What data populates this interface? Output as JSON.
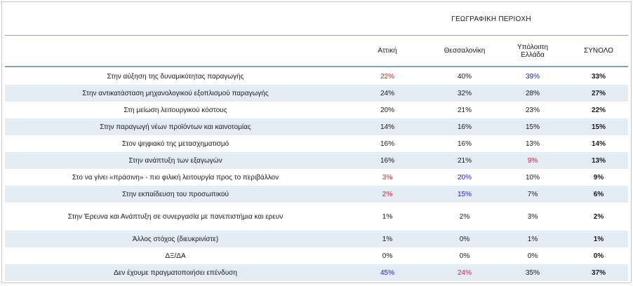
{
  "table": {
    "group_title": "ΓΕΩΓΡΑΦΙΚΗ ΠΕΡΙΟΧΗ",
    "columns": [
      "Αττική",
      "Θεσσαλονίκη",
      "Υπόλοιπη Ελλάδα",
      "ΣΥΝΟΛΟ"
    ],
    "colors": {
      "highlight_red": "#e02020",
      "highlight_blue": "#2020e0",
      "row_shade": "#e4ebf5"
    },
    "rows": [
      {
        "label": "Στην αύξηση της δυναμικότητας παραγωγής",
        "values": [
          "22%",
          "40%",
          "39%",
          "33%"
        ],
        "colors": [
          "red",
          "",
          "blue",
          ""
        ]
      },
      {
        "label": "Στην αντικατάσταση μηχανολογικού εξοπλισμού παραγωγής",
        "values": [
          "24%",
          "32%",
          "28%",
          "27%"
        ],
        "colors": [
          "",
          "",
          "",
          ""
        ]
      },
      {
        "label": "Στη μείωση λειτουργικού κόστους",
        "values": [
          "20%",
          "21%",
          "23%",
          "22%"
        ],
        "colors": [
          "",
          "",
          "",
          ""
        ]
      },
      {
        "label": "Στην παραγωγή νέων προϊόντων και καινοτομίας",
        "values": [
          "14%",
          "16%",
          "15%",
          "15%"
        ],
        "colors": [
          "",
          "",
          "",
          ""
        ]
      },
      {
        "label": "Στον ψηφιακό της μετασχηματισμό",
        "values": [
          "16%",
          "16%",
          "13%",
          "14%"
        ],
        "colors": [
          "",
          "",
          "",
          ""
        ]
      },
      {
        "label": "Στην ανάπτυξη των εξαγωγών",
        "values": [
          "16%",
          "21%",
          "9%",
          "13%"
        ],
        "colors": [
          "",
          "",
          "red",
          ""
        ]
      },
      {
        "label": "Στο να γίνει «πράσινη» - πιο φιλική λειτουργία προς το περιβάλλον",
        "values": [
          "3%",
          "20%",
          "10%",
          "9%"
        ],
        "colors": [
          "red",
          "blue",
          "",
          ""
        ]
      },
      {
        "label": "Στην εκπαίδευση του προσωπικού",
        "values": [
          "2%",
          "15%",
          "7%",
          "6%"
        ],
        "colors": [
          "red",
          "blue",
          "",
          ""
        ]
      },
      {
        "label": "Στην Έρευνα και Ανάπτυξη σε συνεργασία με πανεπιστήμια και ερευν",
        "values": [
          "1%",
          "2%",
          "3%",
          "2%"
        ],
        "colors": [
          "",
          "",
          "",
          ""
        ]
      },
      {
        "label": "Άλλος στόχος (διευκρινίστε)",
        "values": [
          "1%",
          "0%",
          "1%",
          "1%"
        ],
        "colors": [
          "",
          "",
          "",
          ""
        ]
      },
      {
        "label": "ΔΞ/ΔΑ",
        "values": [
          "0%",
          "0%",
          "0%",
          "0%"
        ],
        "colors": [
          "",
          "",
          "",
          ""
        ]
      },
      {
        "label": "Δεν έχουμε πραγματοποιήσει επένδυση",
        "values": [
          "45%",
          "24%",
          "35%",
          "37%"
        ],
        "colors": [
          "blue",
          "red",
          "",
          ""
        ]
      }
    ]
  }
}
